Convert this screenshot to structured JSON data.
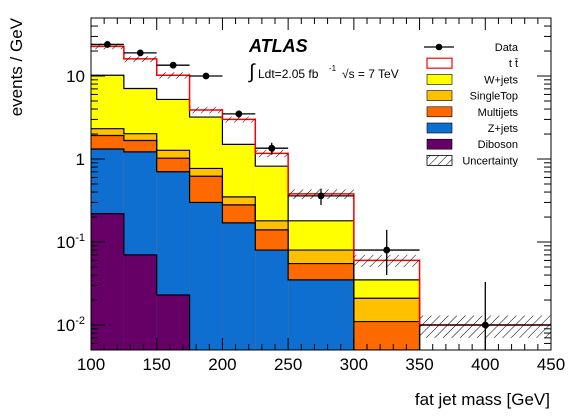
{
  "chart_data": {
    "type": "stacked-histogram",
    "xlabel": "fat jet mass [GeV]",
    "ylabel": "events / GeV",
    "xlim": [
      100,
      450
    ],
    "ylim": [
      0.005,
      50
    ],
    "yscale": "log",
    "x_ticks": [
      "100",
      "150",
      "200",
      "250",
      "300",
      "350",
      "400",
      "450"
    ],
    "y_ticks": [
      {
        "value": 0.01,
        "base": "10",
        "exp": "-2"
      },
      {
        "value": 0.1,
        "base": "10",
        "exp": "-1"
      },
      {
        "value": 1,
        "base": "1",
        "exp": ""
      },
      {
        "value": 10,
        "base": "10",
        "exp": ""
      }
    ],
    "bins": [
      100,
      125,
      150,
      175,
      200,
      225,
      250,
      300,
      350,
      450
    ],
    "series": [
      {
        "name": "Diboson",
        "color": "#660066",
        "values": [
          0.22,
          0.07,
          0.023,
          0,
          0,
          0,
          0,
          0,
          0
        ]
      },
      {
        "name": "Z+jets",
        "color": "#0f6fd0",
        "values": [
          1.1,
          1.15,
          0.68,
          0.3,
          0.17,
          0.08,
          0.035,
          0.005,
          0
        ]
      },
      {
        "name": "Multijets",
        "color": "#ff6a00",
        "values": [
          0.6,
          0.45,
          0.32,
          0.32,
          0.11,
          0.06,
          0.02,
          0.006,
          0
        ]
      },
      {
        "name": "SingleTop",
        "color": "#ffc000",
        "values": [
          0.4,
          0.35,
          0.25,
          0.15,
          0.07,
          0.04,
          0.025,
          0.01,
          0
        ]
      },
      {
        "name": "W+jets",
        "color": "#ffff00",
        "values": [
          7.9,
          5.05,
          3.95,
          2.43,
          1.15,
          0.64,
          0.1,
          0.014,
          0
        ]
      },
      {
        "name": "t t̄",
        "color": "#ff0000",
        "values": [
          12.5,
          9.0,
          5.0,
          0.7,
          1.5,
          0.35,
          0.2,
          0.025,
          0.01
        ]
      }
    ],
    "total_mc": [
      22.8,
      16.0,
      10.2,
      3.9,
      3.0,
      1.17,
      0.38,
      0.06,
      0.01
    ],
    "uncertainty_band": {
      "lo": [
        21.0,
        14.7,
        9.3,
        3.55,
        2.75,
        1.05,
        0.33,
        0.05,
        0.007
      ],
      "hi": [
        24.6,
        17.3,
        11.1,
        4.25,
        3.25,
        1.29,
        0.43,
        0.07,
        0.013
      ]
    },
    "data": {
      "name": "Data",
      "x": [
        112.5,
        137.5,
        162.5,
        187.5,
        212.5,
        237.5,
        275,
        325,
        400
      ],
      "y": [
        24,
        19,
        13.5,
        10,
        3.5,
        1.35,
        0.36,
        0.08,
        0.01
      ],
      "err_lo": [
        1.0,
        0.85,
        0.75,
        0.65,
        0.35,
        0.22,
        0.08,
        0.04,
        0.0085
      ],
      "err_hi": [
        1.0,
        0.85,
        0.75,
        0.65,
        0.35,
        0.22,
        0.08,
        0.06,
        0.023
      ]
    },
    "legend_placement": "top-right",
    "legend": [
      "Data",
      "t t̄",
      "W+jets",
      "SingleTop",
      "Multijets",
      "Z+jets",
      "Diboson",
      "Uncertainty"
    ],
    "atlas_label": "ATLAS",
    "lumi_label": {
      "integral": "∫",
      "text": "Ldt=2.05 fb",
      "sup": "-1",
      "sqrt": "√s = 7 TeV"
    }
  }
}
